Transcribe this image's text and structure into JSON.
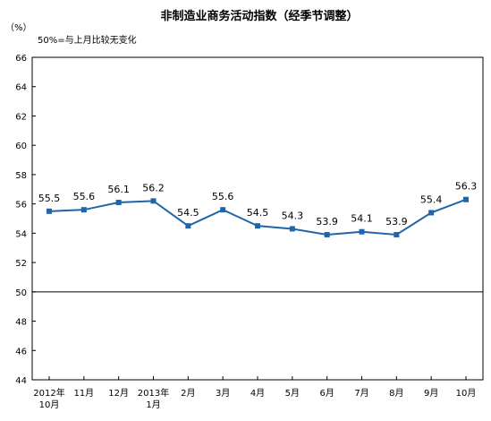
{
  "chart_data": {
    "type": "line",
    "title": "非制造业商务活动指数（经季节调整）",
    "unit_label": "（%）",
    "note": "50%=与上月比较无变化",
    "xlabel": "",
    "ylabel": "",
    "ylim": [
      44,
      66
    ],
    "ytick_step": 2,
    "yticks": [
      "44",
      "46",
      "48",
      "50",
      "52",
      "54",
      "56",
      "58",
      "60",
      "62",
      "64",
      "66"
    ],
    "reference_line": 50,
    "grid": false,
    "legend": "none",
    "categories": [
      "2012年\n10月",
      "11月",
      "12月",
      "2013年\n1月",
      "2月",
      "3月",
      "4月",
      "5月",
      "6月",
      "7月",
      "8月",
      "9月",
      "10月"
    ],
    "series": [
      {
        "values": [
          55.5,
          55.6,
          56.1,
          56.2,
          54.5,
          55.6,
          54.5,
          54.3,
          53.9,
          54.1,
          53.9,
          55.4,
          56.3
        ],
        "labels": [
          "55.5",
          "55.6",
          "56.1",
          "56.2",
          "54.5",
          "55.6",
          "54.5",
          "54.3",
          "53.9",
          "54.1",
          "53.9",
          "55.4",
          "56.3"
        ],
        "color": "#1f66a8"
      }
    ]
  }
}
